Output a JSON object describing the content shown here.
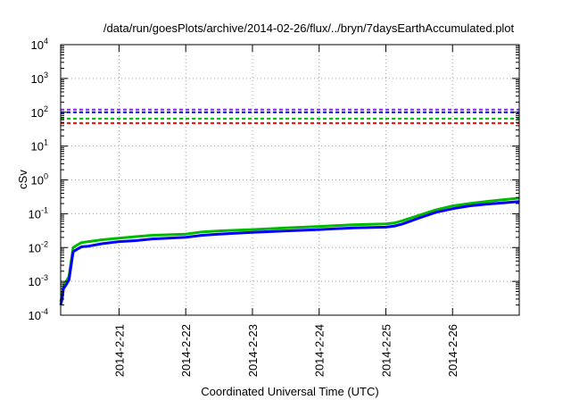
{
  "chart_data": {
    "type": "line",
    "title": "/data/run/goesPlots/archive/2014-02-26/flux/../bryn/7daysEarthAccumulated.plot",
    "xlabel": "Coordinated Universal Time (UTC)",
    "ylabel": "cSv",
    "y_scale": "log",
    "ylim": [
      0.0001,
      10000
    ],
    "y_ticks": [
      {
        "value": 0.0001,
        "base": "10",
        "exp": "-4"
      },
      {
        "value": 0.001,
        "base": "10",
        "exp": "-3"
      },
      {
        "value": 0.01,
        "base": "10",
        "exp": "-2"
      },
      {
        "value": 0.1,
        "base": "10",
        "exp": "-1"
      },
      {
        "value": 1,
        "base": "10",
        "exp": "0"
      },
      {
        "value": 10,
        "base": "10",
        "exp": "1"
      },
      {
        "value": 100,
        "base": "10",
        "exp": "2"
      },
      {
        "value": 1000,
        "base": "10",
        "exp": "3"
      },
      {
        "value": 10000,
        "base": "10",
        "exp": "4"
      }
    ],
    "xlim": [
      "2014-02-20T03:00",
      "2014-02-27T00:00"
    ],
    "x_ticks": [
      {
        "value": "2014-02-21T00:00",
        "label": "2014-2-21"
      },
      {
        "value": "2014-02-22T00:00",
        "label": "2014-2-22"
      },
      {
        "value": "2014-02-23T00:00",
        "label": "2014-2-23"
      },
      {
        "value": "2014-02-24T00:00",
        "label": "2014-2-24"
      },
      {
        "value": "2014-02-25T00:00",
        "label": "2014-2-25"
      },
      {
        "value": "2014-02-26T00:00",
        "label": "2014-2-26"
      }
    ],
    "grid": true,
    "series": [
      {
        "color": "#00bb00",
        "style": "solid",
        "x": [
          "2014-02-20T03:00",
          "2014-02-20T03:30",
          "2014-02-20T04:00",
          "2014-02-20T05:00",
          "2014-02-20T06:00",
          "2014-02-20T07:30",
          "2014-02-20T09:00",
          "2014-02-20T10:30",
          "2014-02-20T13:00",
          "2014-02-20T18:00",
          "2014-02-21T00:00",
          "2014-02-21T06:00",
          "2014-02-21T12:00",
          "2014-02-22T00:00",
          "2014-02-22T06:00",
          "2014-02-22T12:00",
          "2014-02-23T00:00",
          "2014-02-23T12:00",
          "2014-02-24T00:00",
          "2014-02-24T12:00",
          "2014-02-25T00:00",
          "2014-02-25T03:00",
          "2014-02-25T06:00",
          "2014-02-25T12:00",
          "2014-02-25T18:00",
          "2014-02-26T00:00",
          "2014-02-26T06:00",
          "2014-02-26T12:00",
          "2014-02-26T18:00",
          "2014-02-27T00:00"
        ],
        "y": [
          0.00025,
          0.0004,
          0.0007,
          0.001,
          0.0014,
          0.01,
          0.012,
          0.014,
          0.015,
          0.017,
          0.019,
          0.021,
          0.023,
          0.025,
          0.029,
          0.031,
          0.034,
          0.038,
          0.042,
          0.047,
          0.05,
          0.053,
          0.062,
          0.09,
          0.13,
          0.17,
          0.2,
          0.23,
          0.26,
          0.29
        ]
      },
      {
        "color": "#0000ff",
        "style": "solid",
        "x": [
          "2014-02-20T03:00",
          "2014-02-20T03:30",
          "2014-02-20T04:00",
          "2014-02-20T05:00",
          "2014-02-20T06:00",
          "2014-02-20T07:30",
          "2014-02-20T09:00",
          "2014-02-20T10:30",
          "2014-02-20T13:00",
          "2014-02-20T18:00",
          "2014-02-21T00:00",
          "2014-02-21T06:00",
          "2014-02-21T12:00",
          "2014-02-22T00:00",
          "2014-02-22T06:00",
          "2014-02-22T12:00",
          "2014-02-23T00:00",
          "2014-02-23T12:00",
          "2014-02-24T00:00",
          "2014-02-24T12:00",
          "2014-02-25T00:00",
          "2014-02-25T03:00",
          "2014-02-25T06:00",
          "2014-02-25T12:00",
          "2014-02-25T18:00",
          "2014-02-26T00:00",
          "2014-02-26T06:00",
          "2014-02-26T12:00",
          "2014-02-26T18:00",
          "2014-02-27T00:00"
        ],
        "y": [
          0.0002,
          0.0003,
          0.0006,
          0.0008,
          0.0011,
          0.0075,
          0.009,
          0.0105,
          0.011,
          0.013,
          0.015,
          0.016,
          0.018,
          0.02,
          0.023,
          0.025,
          0.028,
          0.031,
          0.034,
          0.038,
          0.04,
          0.043,
          0.05,
          0.075,
          0.11,
          0.14,
          0.17,
          0.19,
          0.21,
          0.23
        ]
      },
      {
        "color": "#8a2be2",
        "style": "dashed",
        "constant": 120
      },
      {
        "color": "#0000ff",
        "style": "dashed",
        "constant": 100
      },
      {
        "color": "#00bb00",
        "style": "dashed",
        "constant": 65
      },
      {
        "color": "#ff0000",
        "style": "dashed",
        "constant": 48
      }
    ]
  }
}
